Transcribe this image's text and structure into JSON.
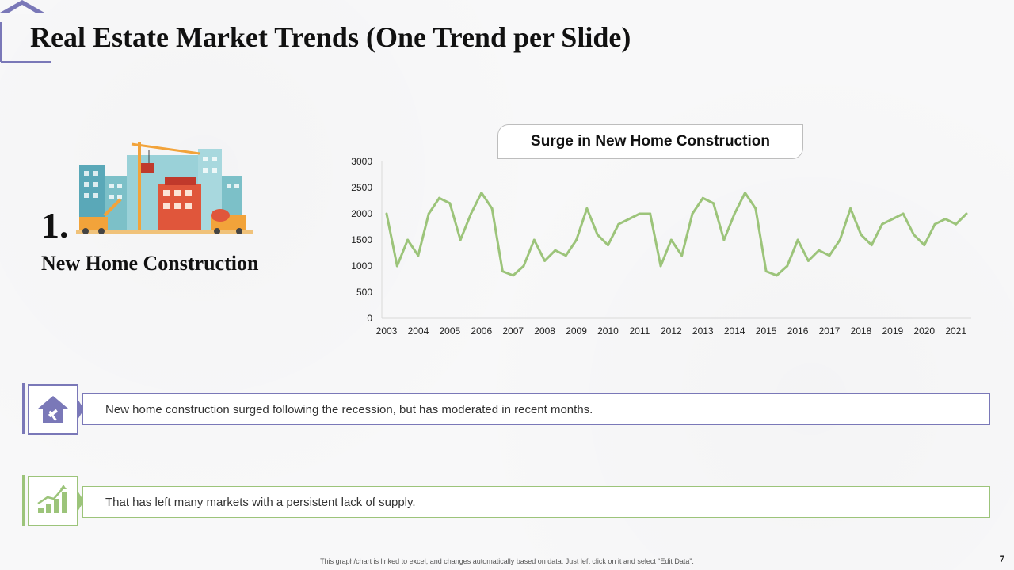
{
  "title": "Real Estate Market Trends (One Trend per Slide)",
  "trend": {
    "number": "1.",
    "label": "New Home Construction"
  },
  "chart_title": "Surge in New Home Construction",
  "chart_data": {
    "type": "line",
    "title": "Surge in New Home Construction",
    "ylim": [
      0,
      3000
    ],
    "yticks": [
      0,
      500,
      1000,
      1500,
      2000,
      2500,
      3000
    ],
    "xticks": [
      "2003",
      "2004",
      "2005",
      "2006",
      "2007",
      "2008",
      "2009",
      "2010",
      "2011",
      "2012",
      "2013",
      "2014",
      "2015",
      "2016",
      "2017",
      "2018",
      "2019",
      "2020",
      "2021"
    ],
    "x_start": 2003,
    "points_per_year": 3,
    "series": [
      {
        "color": "#9cc47a",
        "values": [
          2000,
          1000,
          1500,
          1200,
          2000,
          2300,
          2200,
          1500,
          2000,
          2400,
          2100,
          900,
          820,
          1000,
          1500,
          1100,
          1300,
          1200,
          1500,
          2100,
          1600,
          1400,
          1800,
          1900,
          2000,
          2000,
          1000,
          1500,
          1200,
          2000,
          2300,
          2200,
          1500,
          2000,
          2400,
          2100,
          900,
          820,
          1000,
          1500,
          1100,
          1300,
          1200,
          1500,
          2100,
          1600,
          1400,
          1800,
          1900,
          2000,
          1600,
          1400,
          1800,
          1900,
          1800,
          2000
        ]
      }
    ],
    "grid": false,
    "legend": "none"
  },
  "notes": [
    {
      "text": "New home construction surged following the recession, but has moderated in recent months.",
      "icon": "house-hammer-icon",
      "color": "#7a78b8"
    },
    {
      "text": "That has left many markets with a persistent lack of supply.",
      "icon": "growth-chart-icon",
      "color": "#9cc47a"
    }
  ],
  "footer": "This graph/chart is linked to excel, and changes automatically based on data. Just left click on it and select “Edit Data”.",
  "page_number": "7"
}
